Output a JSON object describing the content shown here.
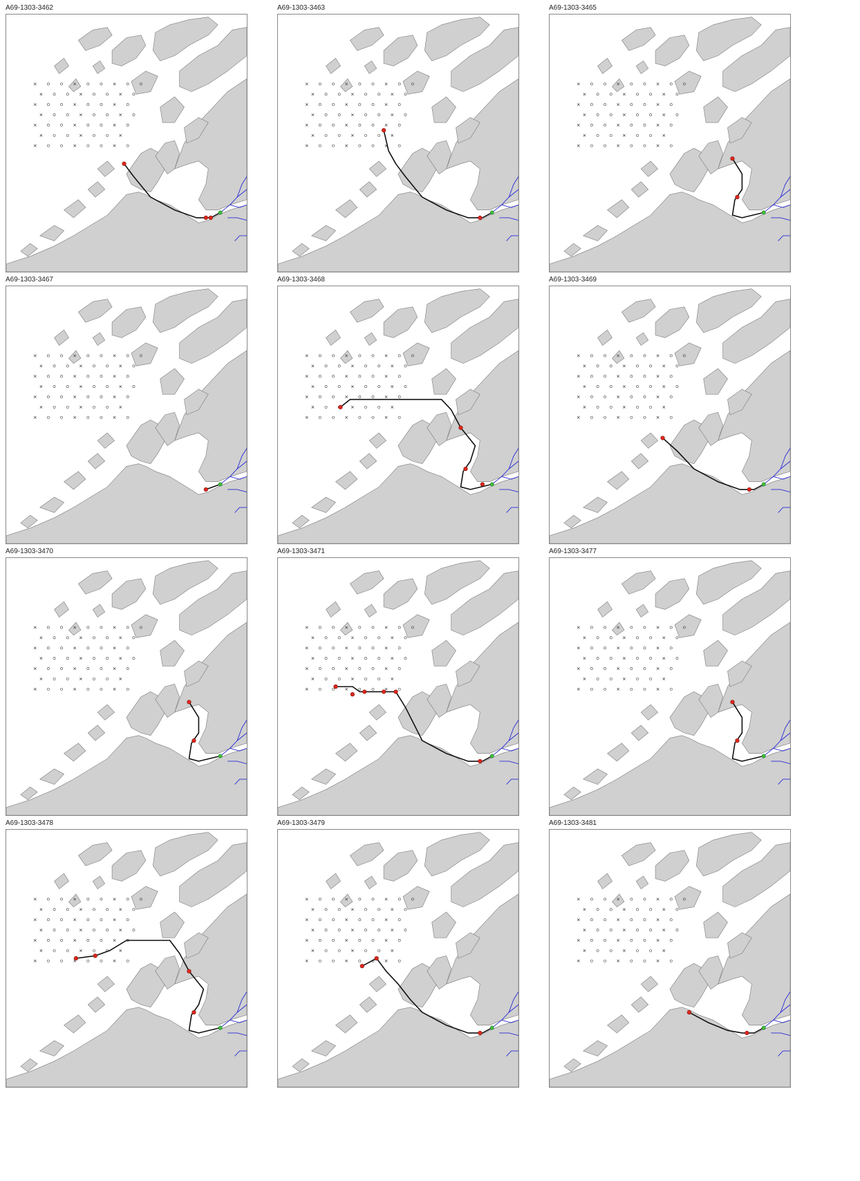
{
  "colors": {
    "land": "#d0d0d0",
    "coast": "#7a7a7a",
    "track": "#111111",
    "detection": "#e0281e",
    "release": "#3ec43e",
    "river": "#2a2ad6",
    "receiver": "#444444"
  },
  "panels": [
    {
      "title": "A69-1303-3462",
      "track": [
        [
          0.49,
          0.58
        ],
        [
          0.53,
          0.63
        ],
        [
          0.6,
          0.71
        ],
        [
          0.7,
          0.76
        ],
        [
          0.79,
          0.79
        ],
        [
          0.85,
          0.79
        ],
        [
          0.89,
          0.77
        ]
      ],
      "detections": [
        [
          0.49,
          0.58
        ],
        [
          0.83,
          0.79
        ],
        [
          0.85,
          0.79
        ]
      ]
    },
    {
      "title": "A69-1303-3463",
      "track": [
        [
          0.44,
          0.45
        ],
        [
          0.46,
          0.53
        ],
        [
          0.49,
          0.58
        ],
        [
          0.53,
          0.63
        ],
        [
          0.6,
          0.71
        ],
        [
          0.7,
          0.76
        ],
        [
          0.79,
          0.79
        ],
        [
          0.85,
          0.79
        ],
        [
          0.89,
          0.77
        ]
      ],
      "detections": [
        [
          0.44,
          0.45
        ],
        [
          0.84,
          0.79
        ]
      ]
    },
    {
      "title": "A69-1303-3465",
      "track": [
        [
          0.76,
          0.56
        ],
        [
          0.8,
          0.62
        ],
        [
          0.8,
          0.68
        ],
        [
          0.77,
          0.72
        ],
        [
          0.76,
          0.78
        ],
        [
          0.8,
          0.79
        ],
        [
          0.89,
          0.77
        ]
      ],
      "detections": [
        [
          0.76,
          0.56
        ],
        [
          0.78,
          0.71
        ]
      ]
    },
    {
      "title": "A69-1303-3467",
      "track": [
        [
          0.83,
          0.79
        ],
        [
          0.89,
          0.77
        ]
      ],
      "detections": [
        [
          0.83,
          0.79
        ]
      ]
    },
    {
      "title": "A69-1303-3468",
      "track": [
        [
          0.26,
          0.47
        ],
        [
          0.3,
          0.44
        ],
        [
          0.4,
          0.44
        ],
        [
          0.55,
          0.44
        ],
        [
          0.68,
          0.44
        ],
        [
          0.72,
          0.48
        ],
        [
          0.76,
          0.55
        ],
        [
          0.82,
          0.62
        ],
        [
          0.8,
          0.68
        ],
        [
          0.77,
          0.72
        ],
        [
          0.76,
          0.78
        ],
        [
          0.8,
          0.79
        ],
        [
          0.89,
          0.77
        ]
      ],
      "detections": [
        [
          0.26,
          0.47
        ],
        [
          0.76,
          0.55
        ],
        [
          0.78,
          0.71
        ],
        [
          0.85,
          0.77
        ]
      ]
    },
    {
      "title": "A69-1303-3469",
      "track": [
        [
          0.47,
          0.59
        ],
        [
          0.53,
          0.64
        ],
        [
          0.6,
          0.71
        ],
        [
          0.7,
          0.76
        ],
        [
          0.79,
          0.79
        ],
        [
          0.85,
          0.79
        ],
        [
          0.89,
          0.77
        ]
      ],
      "detections": [
        [
          0.47,
          0.59
        ],
        [
          0.83,
          0.79
        ]
      ]
    },
    {
      "title": "A69-1303-3470",
      "track": [
        [
          0.76,
          0.56
        ],
        [
          0.8,
          0.62
        ],
        [
          0.8,
          0.68
        ],
        [
          0.77,
          0.72
        ],
        [
          0.76,
          0.78
        ],
        [
          0.8,
          0.79
        ],
        [
          0.89,
          0.77
        ]
      ],
      "detections": [
        [
          0.76,
          0.56
        ],
        [
          0.78,
          0.71
        ]
      ]
    },
    {
      "title": "A69-1303-3471",
      "track": [
        [
          0.24,
          0.5
        ],
        [
          0.31,
          0.5
        ],
        [
          0.34,
          0.52
        ],
        [
          0.44,
          0.52
        ],
        [
          0.49,
          0.52
        ],
        [
          0.53,
          0.58
        ],
        [
          0.6,
          0.71
        ],
        [
          0.7,
          0.76
        ],
        [
          0.79,
          0.79
        ],
        [
          0.85,
          0.79
        ],
        [
          0.89,
          0.77
        ]
      ],
      "detections": [
        [
          0.24,
          0.5
        ],
        [
          0.31,
          0.53
        ],
        [
          0.36,
          0.52
        ],
        [
          0.44,
          0.52
        ],
        [
          0.49,
          0.52
        ],
        [
          0.84,
          0.79
        ]
      ]
    },
    {
      "title": "A69-1303-3477",
      "track": [
        [
          0.76,
          0.56
        ],
        [
          0.8,
          0.62
        ],
        [
          0.8,
          0.68
        ],
        [
          0.77,
          0.72
        ],
        [
          0.76,
          0.78
        ],
        [
          0.8,
          0.79
        ],
        [
          0.89,
          0.77
        ]
      ],
      "detections": [
        [
          0.76,
          0.56
        ],
        [
          0.78,
          0.71
        ]
      ]
    },
    {
      "title": "A69-1303-3478",
      "track": [
        [
          0.29,
          0.5
        ],
        [
          0.37,
          0.49
        ],
        [
          0.43,
          0.47
        ],
        [
          0.5,
          0.43
        ],
        [
          0.6,
          0.43
        ],
        [
          0.68,
          0.43
        ],
        [
          0.72,
          0.48
        ],
        [
          0.76,
          0.55
        ],
        [
          0.82,
          0.62
        ],
        [
          0.8,
          0.68
        ],
        [
          0.77,
          0.72
        ],
        [
          0.76,
          0.78
        ],
        [
          0.8,
          0.79
        ],
        [
          0.89,
          0.77
        ]
      ],
      "detections": [
        [
          0.29,
          0.5
        ],
        [
          0.37,
          0.49
        ],
        [
          0.76,
          0.55
        ],
        [
          0.78,
          0.71
        ]
      ]
    },
    {
      "title": "A69-1303-3479",
      "track": [
        [
          0.35,
          0.53
        ],
        [
          0.41,
          0.5
        ],
        [
          0.45,
          0.55
        ],
        [
          0.5,
          0.6
        ],
        [
          0.55,
          0.66
        ],
        [
          0.6,
          0.71
        ],
        [
          0.7,
          0.76
        ],
        [
          0.79,
          0.79
        ],
        [
          0.85,
          0.79
        ],
        [
          0.89,
          0.77
        ]
      ],
      "detections": [
        [
          0.35,
          0.53
        ],
        [
          0.41,
          0.5
        ],
        [
          0.84,
          0.79
        ]
      ]
    },
    {
      "title": "A69-1303-3481",
      "track": [
        [
          0.58,
          0.71
        ],
        [
          0.66,
          0.75
        ],
        [
          0.74,
          0.78
        ],
        [
          0.8,
          0.79
        ],
        [
          0.85,
          0.79
        ],
        [
          0.89,
          0.77
        ]
      ],
      "detections": [
        [
          0.58,
          0.71
        ],
        [
          0.82,
          0.79
        ]
      ]
    }
  ]
}
